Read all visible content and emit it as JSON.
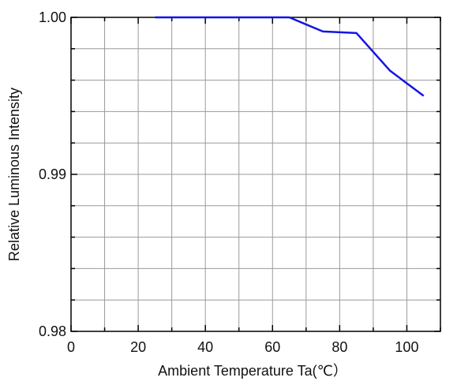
{
  "chart_data": {
    "type": "line",
    "title": "",
    "xlabel": "Ambient Temperature Ta(℃）",
    "ylabel": "Relative Luminous Intensity",
    "xlim": [
      0,
      110
    ],
    "ylim": [
      0.98,
      1.0
    ],
    "grid": true,
    "x_ticks": [
      0,
      20,
      40,
      60,
      80,
      100
    ],
    "x_tick_labels": [
      "0",
      "20",
      "40",
      "60",
      "80",
      "100"
    ],
    "y_ticks": [
      0.98,
      0.99,
      1.0
    ],
    "y_tick_labels": [
      "0.98",
      "0.99",
      "1.00"
    ],
    "series": [
      {
        "color": "#1414e6",
        "x": [
          25,
          35,
          45,
          55,
          65,
          75,
          85,
          95,
          105
        ],
        "y": [
          1.0,
          1.0,
          1.0,
          1.0,
          1.0,
          0.9991,
          0.999,
          0.9966,
          0.995
        ]
      }
    ]
  }
}
